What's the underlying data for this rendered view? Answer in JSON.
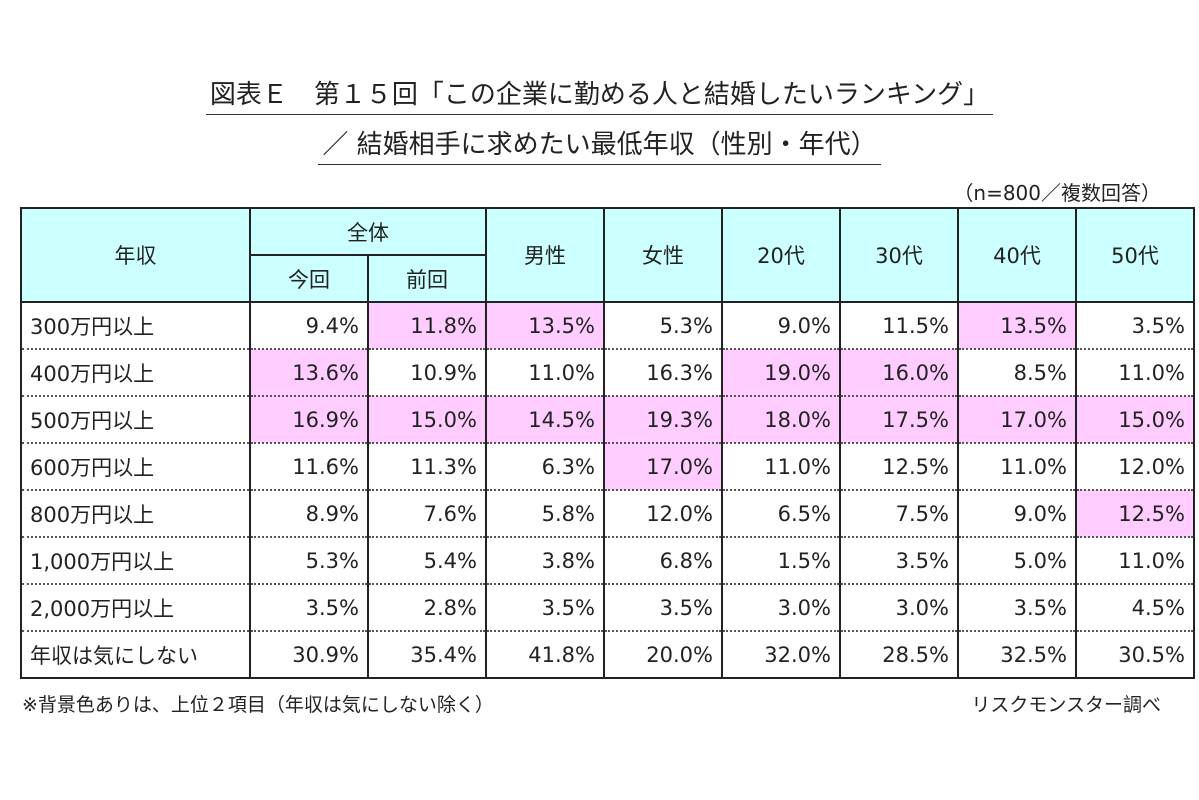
{
  "title_line1": "図表Ｅ　第１５回「この企業に勤める人と結婚したいランキング」",
  "title_line2": "／ 結婚相手に求めたい最低年収（性別・年代）",
  "sample_note": "（n=800／複数回答）",
  "footnote": "※背景色ありは、上位２項目（年収は気にしない除く）",
  "source": "リスクモンスター調べ",
  "colors": {
    "header": "#ccffff",
    "highlight": "#ffccff"
  },
  "chart_data": {
    "type": "table",
    "row_header": "年収",
    "group_header": "全体",
    "columns": [
      "今回",
      "前回",
      "男性",
      "女性",
      "20代",
      "30代",
      "40代",
      "50代"
    ],
    "rows": [
      {
        "label": "300万円以上",
        "values": [
          "9.4%",
          "11.8%",
          "13.5%",
          "5.3%",
          "9.0%",
          "11.5%",
          "13.5%",
          "3.5%"
        ],
        "highlight": [
          1,
          2,
          6
        ]
      },
      {
        "label": "400万円以上",
        "values": [
          "13.6%",
          "10.9%",
          "11.0%",
          "16.3%",
          "19.0%",
          "16.0%",
          "8.5%",
          "11.0%"
        ],
        "highlight": [
          0,
          4,
          5
        ]
      },
      {
        "label": "500万円以上",
        "values": [
          "16.9%",
          "15.0%",
          "14.5%",
          "19.3%",
          "18.0%",
          "17.5%",
          "17.0%",
          "15.0%"
        ],
        "highlight": [
          0,
          1,
          2,
          3,
          4,
          5,
          6,
          7
        ]
      },
      {
        "label": "600万円以上",
        "values": [
          "11.6%",
          "11.3%",
          "6.3%",
          "17.0%",
          "11.0%",
          "12.5%",
          "11.0%",
          "12.0%"
        ],
        "highlight": [
          3
        ]
      },
      {
        "label": "800万円以上",
        "values": [
          "8.9%",
          "7.6%",
          "5.8%",
          "12.0%",
          "6.5%",
          "7.5%",
          "9.0%",
          "12.5%"
        ],
        "highlight": [
          7
        ]
      },
      {
        "label": "1,000万円以上",
        "values": [
          "5.3%",
          "5.4%",
          "3.8%",
          "6.8%",
          "1.5%",
          "3.5%",
          "5.0%",
          "11.0%"
        ],
        "highlight": []
      },
      {
        "label": "2,000万円以上",
        "values": [
          "3.5%",
          "2.8%",
          "3.5%",
          "3.5%",
          "3.0%",
          "3.0%",
          "3.5%",
          "4.5%"
        ],
        "highlight": []
      },
      {
        "label": "年収は気にしない",
        "values": [
          "30.9%",
          "35.4%",
          "41.8%",
          "20.0%",
          "32.0%",
          "28.5%",
          "32.5%",
          "30.5%"
        ],
        "highlight": []
      }
    ]
  }
}
